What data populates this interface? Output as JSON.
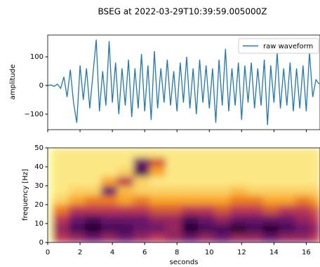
{
  "chart_data": [
    {
      "type": "line",
      "title": "BSEG at 2022-03-29T10:39:59.005000Z",
      "ylabel": "amplitude",
      "xlim": [
        0,
        16.85
      ],
      "ylim": [
        -154,
        176
      ],
      "yticks": [
        100,
        0,
        {
          "value": -100,
          "label": "−100"
        }
      ],
      "legend": "upper right",
      "x": [
        0,
        0.2,
        0.4,
        0.6,
        0.8,
        1,
        1.2,
        1.4,
        1.6,
        1.8,
        2,
        2.2,
        2.4,
        2.6,
        2.8,
        3,
        3.2,
        3.4,
        3.6,
        3.8,
        4,
        4.2,
        4.4,
        4.6,
        4.8,
        5,
        5.2,
        5.4,
        5.6,
        5.8,
        6,
        6.2,
        6.4,
        6.6,
        6.8,
        7,
        7.2,
        7.4,
        7.6,
        7.8,
        8,
        8.2,
        8.4,
        8.6,
        8.8,
        9,
        9.2,
        9.4,
        9.6,
        9.8,
        10,
        10.2,
        10.4,
        10.6,
        10.8,
        11,
        11.2,
        11.4,
        11.6,
        11.8,
        12,
        12.2,
        12.4,
        12.6,
        12.8,
        13,
        13.2,
        13.4,
        13.6,
        13.8,
        14,
        14.2,
        14.4,
        14.6,
        14.8,
        15,
        15.2,
        15.4,
        15.6,
        15.8,
        16,
        16.2,
        16.4,
        16.6,
        16.8
      ],
      "series": [
        {
          "name": "raw waveform",
          "color": "#1f77b4",
          "values": [
            0,
            2,
            -3,
            5,
            -10,
            30,
            -40,
            55,
            -60,
            -130,
            70,
            -50,
            60,
            -80,
            40,
            160,
            -90,
            50,
            -70,
            155,
            -60,
            80,
            -100,
            60,
            -70,
            90,
            -110,
            60,
            -80,
            110,
            -90,
            70,
            -120,
            120,
            -80,
            60,
            -60,
            90,
            -70,
            50,
            -90,
            80,
            -60,
            100,
            -80,
            60,
            -100,
            90,
            -60,
            70,
            -80,
            60,
            -130,
            90,
            -70,
            128,
            -90,
            60,
            -70,
            80,
            -120,
            70,
            -60,
            80,
            -80,
            60,
            -70,
            90,
            -138,
            70,
            -60,
            115,
            -80,
            60,
            -70,
            80,
            -90,
            60,
            -80,
            70,
            -90,
            115,
            -40,
            20,
            5
          ]
        }
      ]
    },
    {
      "type": "heatmap",
      "xlabel": "seconds",
      "ylabel": "frequency [Hz]",
      "colormap": "inferno_r",
      "xlim": [
        0,
        16.85
      ],
      "ylim": [
        0,
        50
      ],
      "xticks": [
        0,
        2,
        4,
        6,
        8,
        10,
        12,
        14,
        16
      ],
      "yticks": [
        0,
        10,
        20,
        30,
        40,
        50
      ],
      "xbins": [
        0.3,
        1.3,
        2.3,
        3.3,
        4.3,
        5.3,
        6.3,
        7.3,
        8.3,
        9.3,
        10.3,
        11.3,
        12.3,
        13.3,
        14.3,
        15.3,
        16.3,
        16.85
      ],
      "ybins": [
        0,
        5,
        10,
        15,
        20,
        25,
        30,
        35,
        40,
        45,
        50
      ],
      "z": [
        [
          0.5,
          0.6,
          0.7,
          0.6,
          0.7,
          0.6,
          0.5,
          0.6,
          0.7,
          0.6,
          0.7,
          0.6,
          0.6,
          0.7,
          0.6,
          0.6,
          0.5
        ],
        [
          0.6,
          0.8,
          0.9,
          0.8,
          0.8,
          0.7,
          0.7,
          0.6,
          0.9,
          0.8,
          0.8,
          0.9,
          0.8,
          0.9,
          0.8,
          0.7,
          0.6
        ],
        [
          0.5,
          0.7,
          0.8,
          0.7,
          0.7,
          0.7,
          0.6,
          0.6,
          0.8,
          0.7,
          0.6,
          0.7,
          0.7,
          0.7,
          0.7,
          0.6,
          0.5
        ],
        [
          0.3,
          0.5,
          0.5,
          0.5,
          0.5,
          0.5,
          0.4,
          0.4,
          0.5,
          0.5,
          0.4,
          0.5,
          0.5,
          0.4,
          0.5,
          0.5,
          0.4
        ],
        [
          0.1,
          0.2,
          0.3,
          0.3,
          0.2,
          0.3,
          0.2,
          0.2,
          0.2,
          0.2,
          0.2,
          0.3,
          0.3,
          0.2,
          0.2,
          0.3,
          0.2
        ],
        [
          0.05,
          0.1,
          0.1,
          0.7,
          0.15,
          0.1,
          0.1,
          0.1,
          0.1,
          0.1,
          0.1,
          0.15,
          0.1,
          0.1,
          0.1,
          0.1,
          0.1
        ],
        [
          0.05,
          0.05,
          0.05,
          0.2,
          0.5,
          0.1,
          0.05,
          0.05,
          0.05,
          0.05,
          0.05,
          0.05,
          0.05,
          0.05,
          0.05,
          0.05,
          0.05
        ],
        [
          0.05,
          0.05,
          0.05,
          0.05,
          0.1,
          0.8,
          0.2,
          0.05,
          0.05,
          0.05,
          0.05,
          0.05,
          0.05,
          0.05,
          0.05,
          0.05,
          0.05
        ],
        [
          0.05,
          0.05,
          0.05,
          0.05,
          0.05,
          0.7,
          0.4,
          0.05,
          0.05,
          0.05,
          0.05,
          0.05,
          0.05,
          0.05,
          0.05,
          0.05,
          0.05
        ],
        [
          0.05,
          0.05,
          0.05,
          0.05,
          0.05,
          0.05,
          0.05,
          0.05,
          0.05,
          0.05,
          0.05,
          0.05,
          0.05,
          0.05,
          0.05,
          0.05,
          0.05
        ]
      ]
    }
  ]
}
